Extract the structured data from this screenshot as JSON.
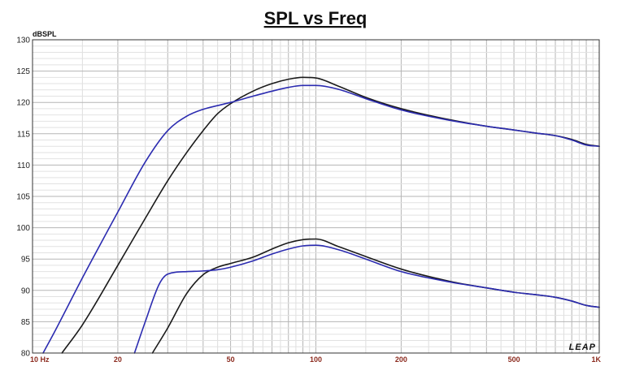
{
  "chart_data": {
    "type": "line",
    "title": "SPL vs Freq",
    "ylabel": "dBSPL",
    "xlabel": "",
    "x_scale": "log",
    "xlim": [
      10,
      1000
    ],
    "ylim": [
      80,
      130
    ],
    "grid": true,
    "x_ticks": [
      {
        "value": 10,
        "label": "10 Hz"
      },
      {
        "value": 20,
        "label": "20"
      },
      {
        "value": 50,
        "label": "50"
      },
      {
        "value": 100,
        "label": "100"
      },
      {
        "value": 200,
        "label": "200"
      },
      {
        "value": 500,
        "label": "500"
      },
      {
        "value": 1000,
        "label": "1K"
      }
    ],
    "y_ticks": [
      80,
      85,
      90,
      95,
      100,
      105,
      110,
      115,
      120,
      125,
      130
    ],
    "logo": "LEAP",
    "colors": {
      "black": "#1a1a1a",
      "blue": "#2b2bb0",
      "grid": "#c8c8c8",
      "tick_x": "#8b2a1e"
    },
    "series": [
      {
        "color": "#1a1a1a",
        "x": [
          12.7,
          15,
          20,
          25,
          30,
          35,
          40,
          45,
          50,
          60,
          70,
          80,
          90,
          100,
          120,
          150,
          200,
          300,
          400,
          500,
          600,
          700,
          800,
          900,
          1000
        ],
        "y": [
          80,
          84.5,
          94,
          101.5,
          107.5,
          112,
          115.5,
          118.2,
          119.8,
          121.8,
          123.0,
          123.7,
          124.0,
          123.9,
          122.6,
          120.8,
          119.0,
          117.2,
          116.2,
          115.6,
          115.1,
          114.7,
          114.1,
          113.3,
          113.0
        ]
      },
      {
        "color": "#2b2bb0",
        "x": [
          10.9,
          12,
          15,
          20,
          25,
          30,
          35,
          40,
          45,
          50,
          60,
          70,
          80,
          90,
          100,
          120,
          150,
          200,
          300,
          400,
          500,
          600,
          700,
          800,
          900,
          1000
        ],
        "y": [
          80,
          83.5,
          92,
          102.5,
          110.5,
          115.5,
          117.8,
          118.9,
          119.5,
          120.0,
          121.0,
          121.8,
          122.4,
          122.7,
          122.7,
          122.1,
          120.6,
          118.8,
          117.1,
          116.2,
          115.6,
          115.1,
          114.7,
          114.0,
          113.2,
          113.0
        ]
      },
      {
        "color": "#1a1a1a",
        "x": [
          26.5,
          30,
          35,
          40,
          45,
          50,
          60,
          70,
          80,
          90,
          100,
          120,
          150,
          200,
          300,
          400,
          500,
          600,
          700,
          800,
          900,
          1000
        ],
        "y": [
          80,
          84,
          89.5,
          92.5,
          93.7,
          94.3,
          95.3,
          96.6,
          97.6,
          98.1,
          98.2,
          97.0,
          95.4,
          93.4,
          91.4,
          90.4,
          89.7,
          89.3,
          88.9,
          88.3,
          87.6,
          87.3
        ]
      },
      {
        "color": "#2b2bb0",
        "x": [
          22.9,
          25,
          28,
          30,
          35,
          40,
          45,
          50,
          60,
          70,
          80,
          90,
          100,
          120,
          150,
          200,
          300,
          400,
          500,
          600,
          700,
          800,
          900,
          1000
        ],
        "y": [
          80,
          85,
          91,
          92.6,
          93.0,
          93.1,
          93.3,
          93.7,
          94.7,
          95.8,
          96.6,
          97.1,
          97.2,
          96.5,
          95.0,
          93.0,
          91.3,
          90.4,
          89.7,
          89.3,
          88.9,
          88.3,
          87.6,
          87.3
        ]
      }
    ]
  }
}
